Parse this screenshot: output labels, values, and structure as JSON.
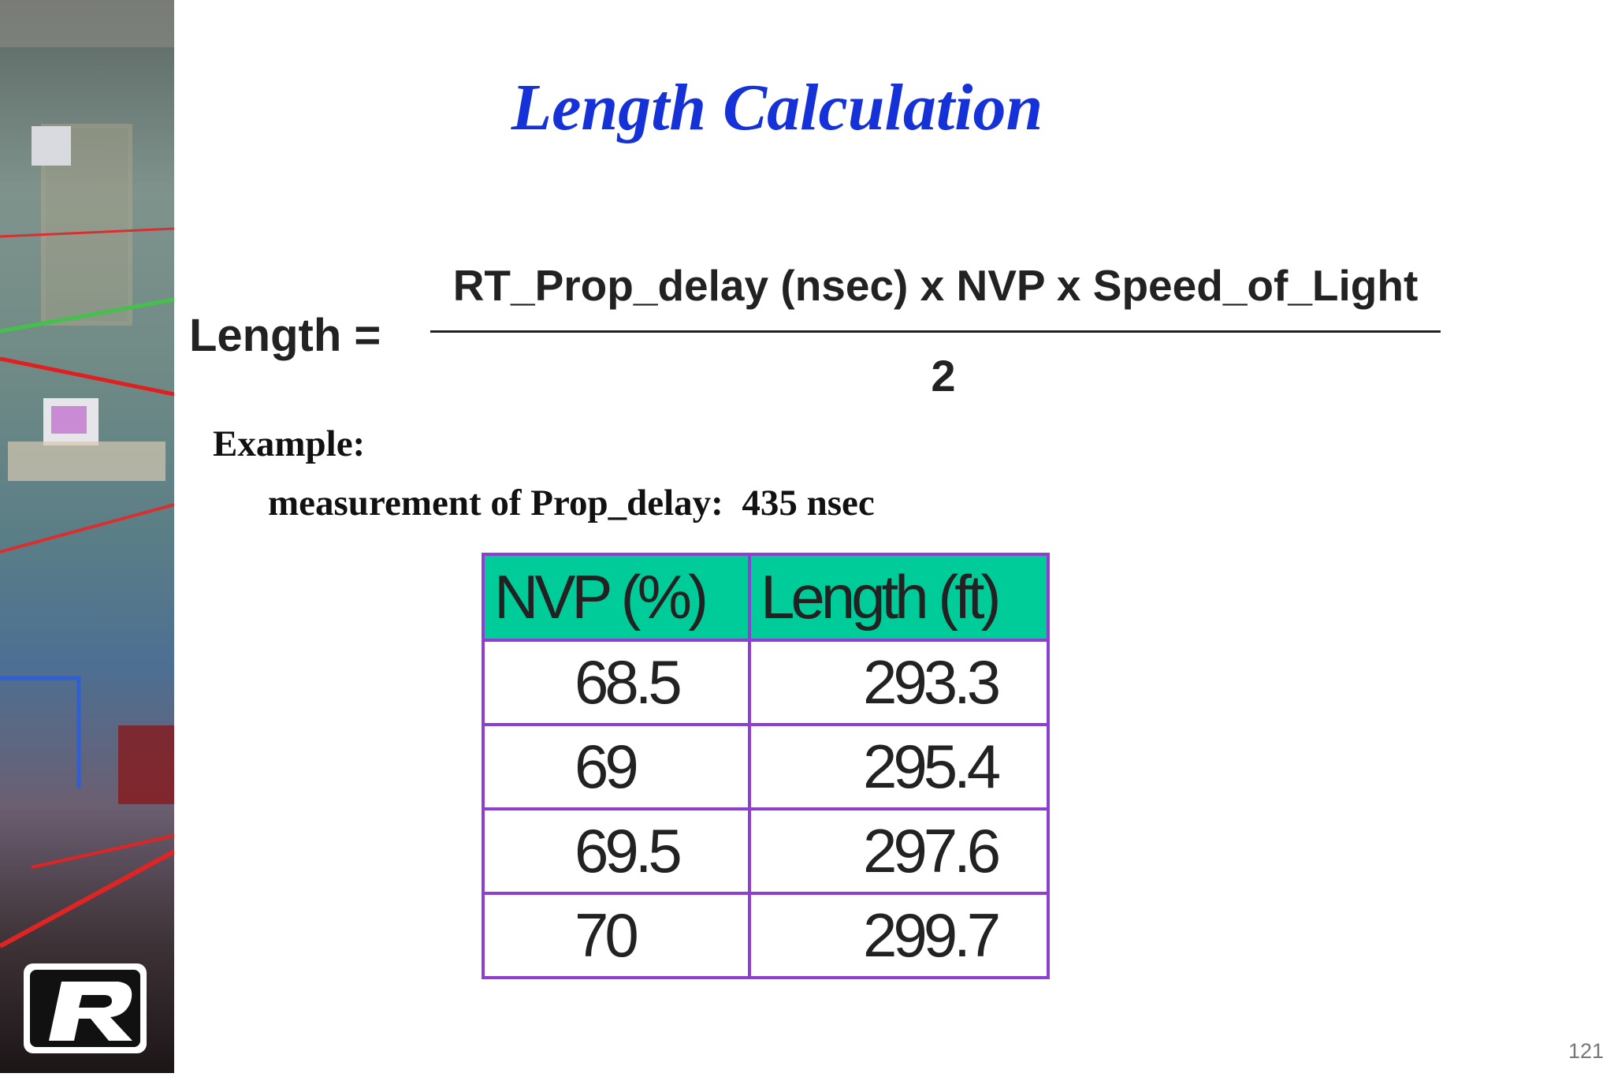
{
  "slide": {
    "title": "Length Calculation",
    "formula": {
      "lhs": "Length =",
      "numerator": "RT_Prop_delay (nsec) x NVP x Speed_of_Light",
      "denominator": "2"
    },
    "example": {
      "label": "Example:",
      "measurement": "measurement of Prop_delay:  435 nsec"
    },
    "table": {
      "header": [
        "NVP (%)",
        "Length (ft)"
      ],
      "rows": [
        [
          "68.5",
          "293.3"
        ],
        [
          "69",
          "295.4"
        ],
        [
          "69.5",
          "297.6"
        ],
        [
          "70",
          "299.7"
        ]
      ]
    },
    "page_number": "121"
  }
}
